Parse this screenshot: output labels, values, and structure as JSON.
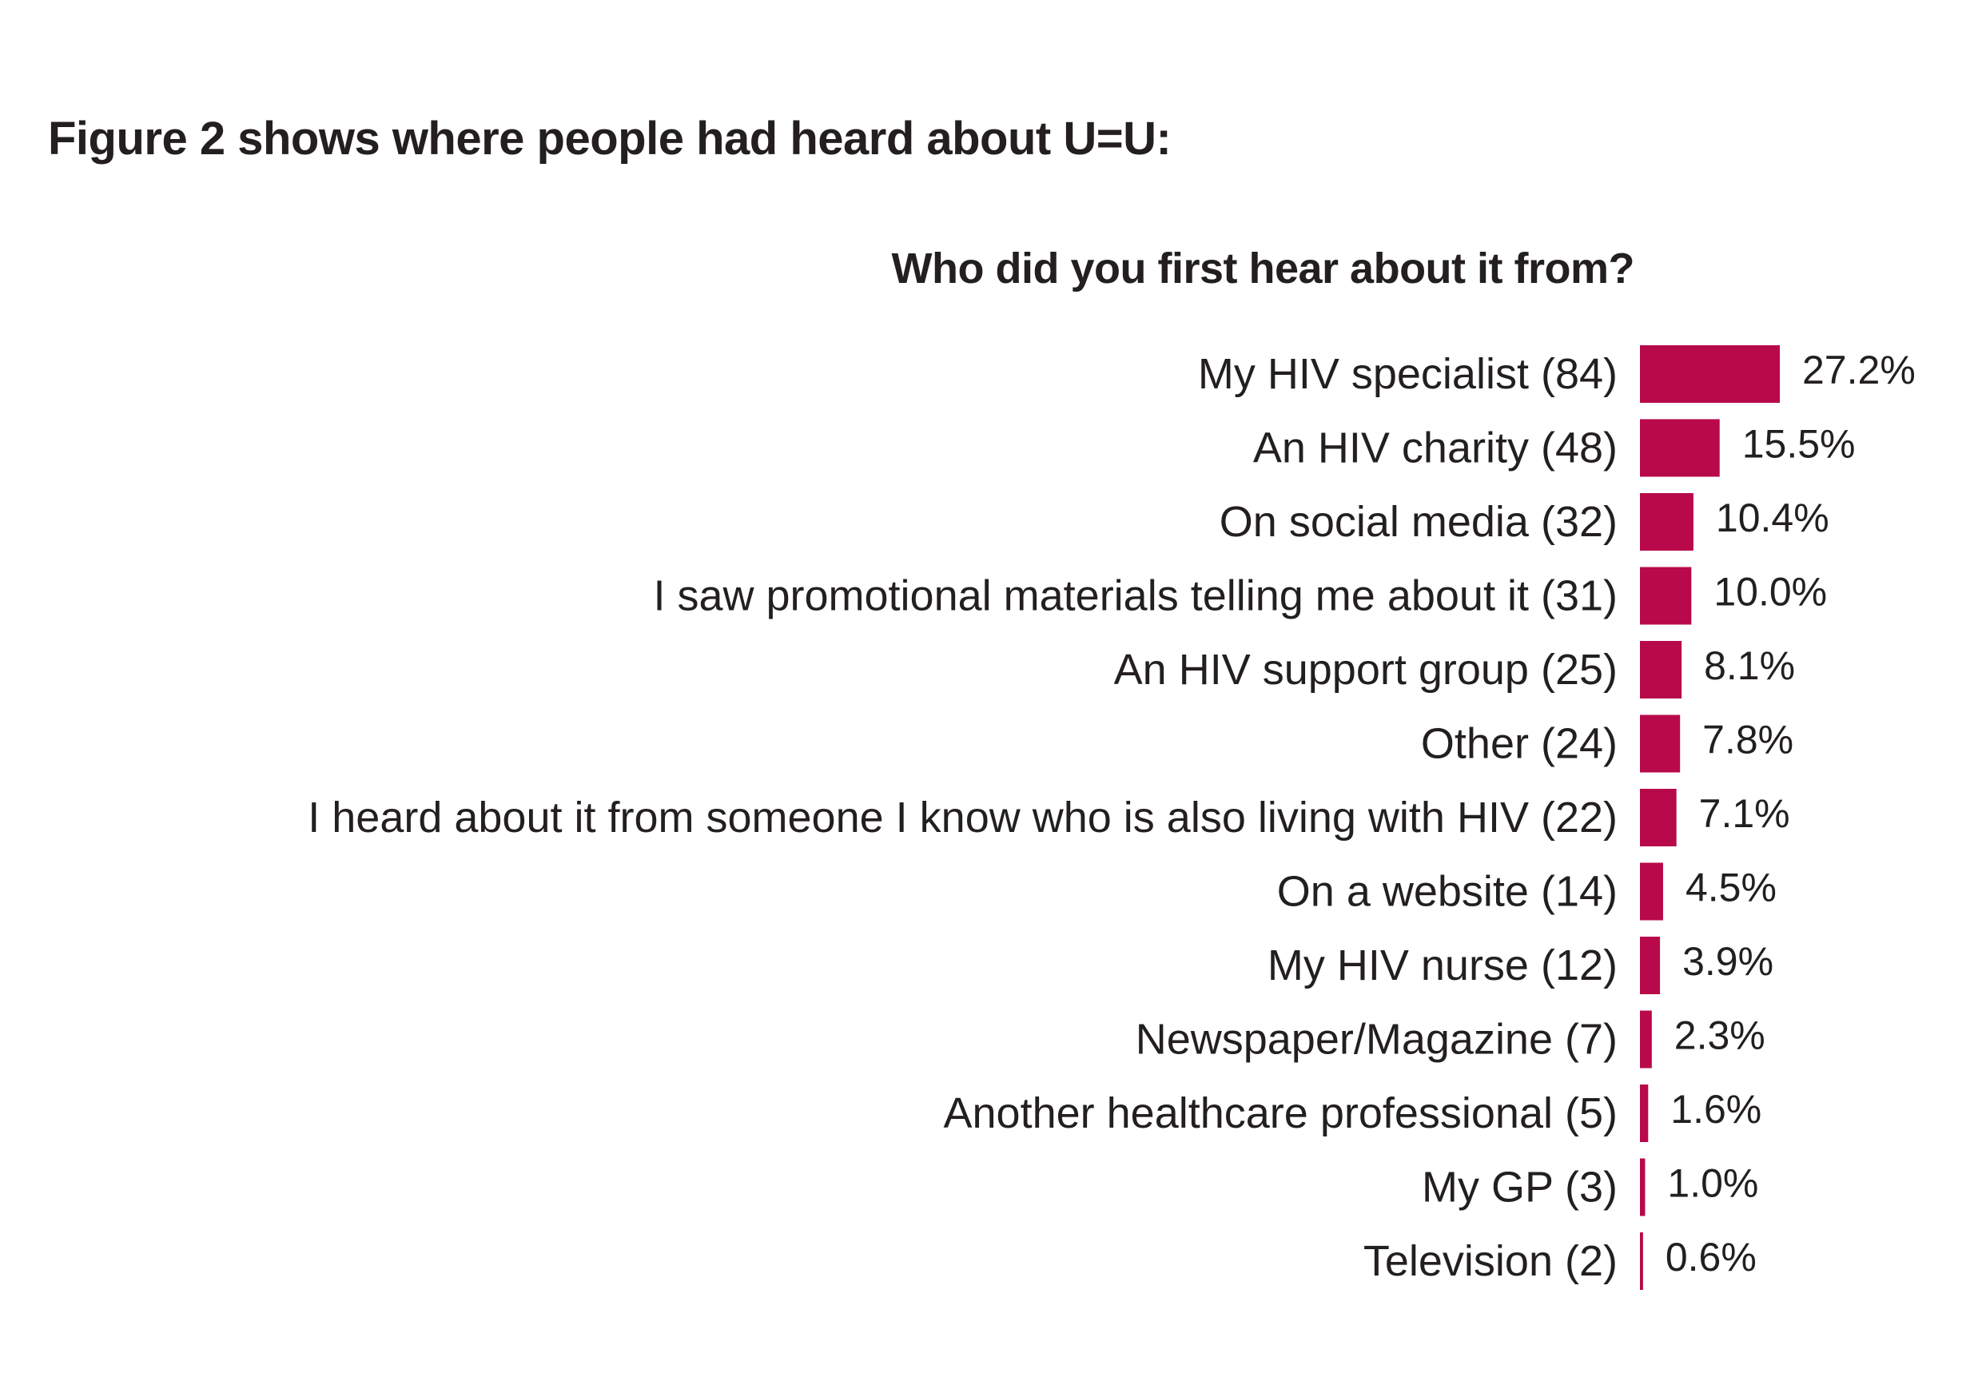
{
  "heading": "Figure 2 shows where people had heard about U=U:",
  "colors": {
    "bar": "#b8094a",
    "text": "#231f20"
  },
  "chart_data": {
    "type": "bar",
    "orientation": "horizontal",
    "title": "Who did you first hear about it from?",
    "xlabel": "",
    "ylabel": "",
    "xlim": [
      0,
      27.2
    ],
    "grid": false,
    "legend": "none",
    "categories": [
      "My HIV specialist (84)",
      "An HIV charity (48)",
      "On social media (32)",
      "I saw promotional materials telling me about it (31)",
      "An HIV support group (25)",
      "Other (24)",
      "I heard about it from someone I know who is also living with HIV (22)",
      "On a website (14)",
      "My HIV nurse (12)",
      "Newspaper/Magazine (7)",
      "Another healthcare professional (5)",
      "My GP (3)",
      "Television (2)"
    ],
    "values": [
      27.2,
      15.5,
      10.4,
      10.0,
      8.1,
      7.8,
      7.1,
      4.5,
      3.9,
      2.3,
      1.6,
      1.0,
      0.6
    ],
    "value_labels": [
      "27.2%",
      "15.5%",
      "10.4%",
      "10.0%",
      "8.1%",
      "7.8%",
      "7.1%",
      "4.5%",
      "3.9%",
      "2.3%",
      "1.6%",
      "1.0%",
      "0.6%"
    ]
  }
}
